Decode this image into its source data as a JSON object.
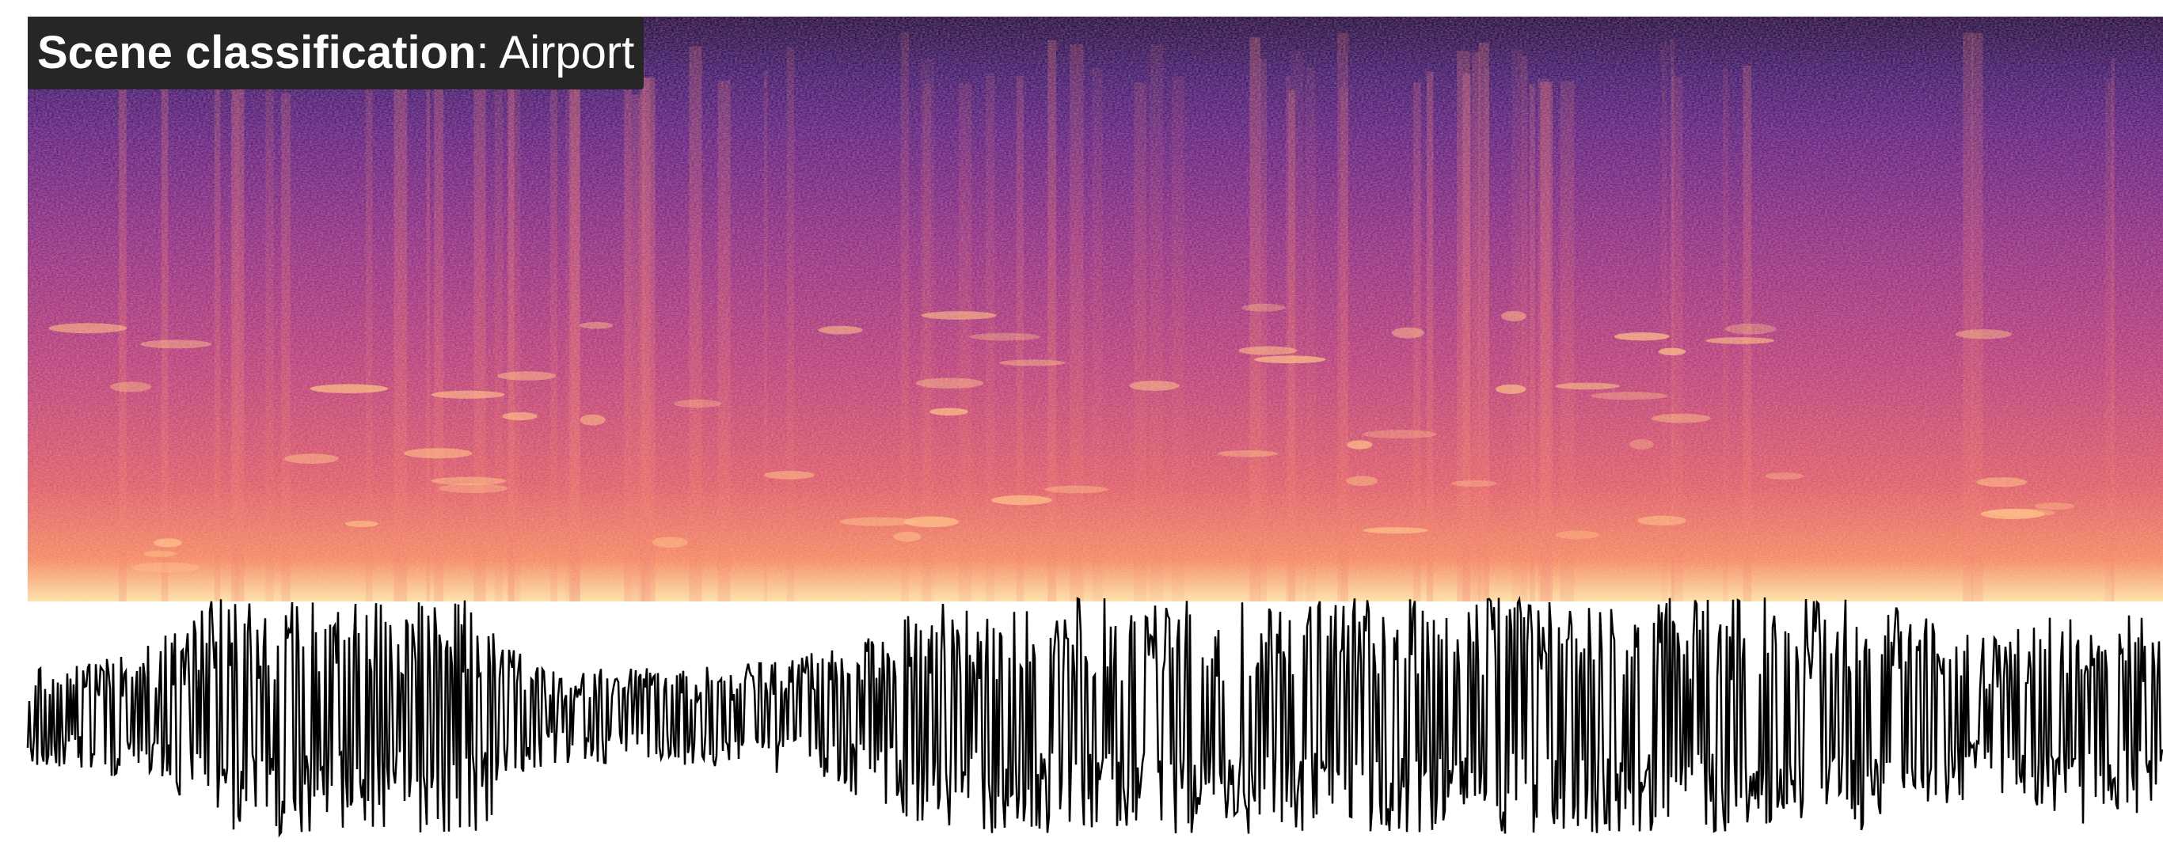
{
  "label": {
    "task": "Scene classification",
    "result": ": Airport"
  }
}
